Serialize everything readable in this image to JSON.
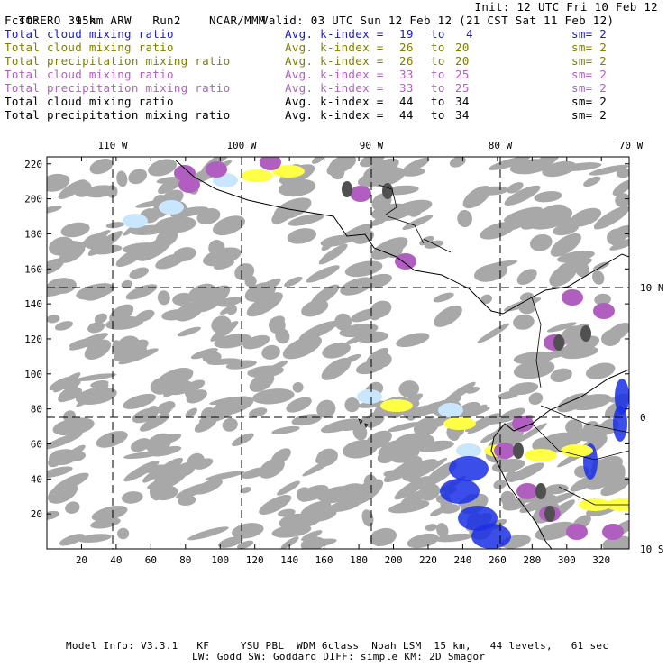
{
  "header": {
    "model": "TORERO",
    "resolution": "15km ARW",
    "run": "Run2",
    "org": "NCAR/MMM",
    "init": "Init: 12 UTC Fri 10 Feb 12",
    "fcst_label": "Fcst:",
    "fcst_value": "39 h",
    "valid": "Valid: 03 UTC Sun 12 Feb 12 (21 CST Sat 11 Feb 12)"
  },
  "legend": [
    {
      "field": "Total cloud mixing ratio",
      "kindex": "Avg. k-index =",
      "from": "19",
      "to_word": "to",
      "to": "4",
      "sm": "sm= 2",
      "color": "#1a1acc"
    },
    {
      "field": "Total cloud mixing ratio",
      "kindex": "Avg. k-index =",
      "from": "26",
      "to_word": "to",
      "to": "20",
      "sm": "sm= 2",
      "color": "#7f7f00"
    },
    {
      "field": "Total precipitation mixing ratio",
      "kindex": "Avg. k-index =",
      "from": "26",
      "to_word": "to",
      "to": "20",
      "sm": "sm= 2",
      "color": "#7f7f00"
    },
    {
      "field": "Total cloud mixing ratio",
      "kindex": "Avg. k-index =",
      "from": "33",
      "to_word": "to",
      "to": "25",
      "sm": "sm= 2",
      "color": "#b05fc0"
    },
    {
      "field": "Total precipitation mixing ratio",
      "kindex": "Avg. k-index =",
      "from": "33",
      "to_word": "to",
      "to": "25",
      "sm": "sm= 2",
      "color": "#b05fc0"
    },
    {
      "field": "Total cloud mixing ratio",
      "kindex": "Avg. k-index =",
      "from": "44",
      "to_word": "to",
      "to": "34",
      "sm": "sm= 2",
      "color": "#000000"
    },
    {
      "field": "Total precipitation mixing ratio",
      "kindex": "Avg. k-index =",
      "from": "44",
      "to_word": "to",
      "to": "34",
      "sm": "sm= 2",
      "color": "#000000"
    }
  ],
  "map": {
    "lon_labels": [
      "110 W",
      "100 W",
      "90 W",
      "80 W",
      "70 W"
    ],
    "lat_labels": [
      "10 N",
      "0",
      "10 S"
    ],
    "x_ticks": [
      "20",
      "40",
      "60",
      "80",
      "100",
      "120",
      "140",
      "160",
      "180",
      "200",
      "220",
      "240",
      "260",
      "280",
      "300",
      "320"
    ],
    "y_ticks": [
      "220",
      "200",
      "180",
      "160",
      "140",
      "120",
      "100",
      "80",
      "60",
      "40",
      "20"
    ],
    "x_range": [
      0,
      336
    ],
    "y_range": [
      0,
      224
    ],
    "colors": {
      "cloud_light": "#a8a8a8",
      "cloud_dark": "#505050",
      "purple": "#b05fc0",
      "yellow": "#ffff44",
      "blue": "#1a2fe6",
      "light_blue": "#c9e6ff"
    }
  },
  "footer": {
    "line1": "Model Info: V3.3.1   KF     YSU PBL  WDM 6class  Noah LSM  15 km,   44 levels,   61 sec",
    "line2": "LW: Godd SW: Goddard DIFF: simple KM: 2D Smagor"
  }
}
